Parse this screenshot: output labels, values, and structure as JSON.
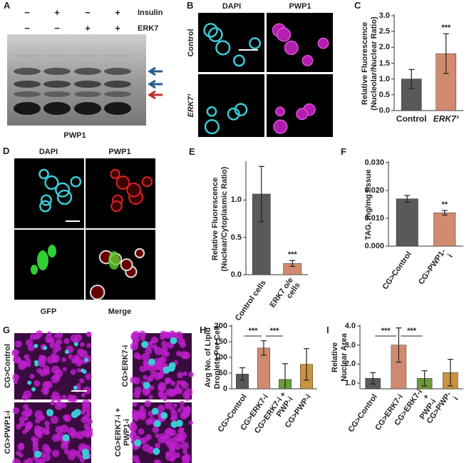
{
  "panels": {
    "a": {
      "letter": "A",
      "rows": [
        "Insulin",
        "ERK7"
      ],
      "signs": [
        [
          "−",
          "+",
          "−",
          "+"
        ],
        [
          "−",
          "−",
          "+",
          "+"
        ]
      ],
      "caption": "PWP1"
    },
    "b": {
      "letter": "B",
      "columns": [
        "DAPI",
        "PWP1"
      ],
      "rows": [
        "Control",
        "ERK7¹"
      ]
    },
    "d": {
      "letter": "D",
      "top": [
        "DAPI",
        "PWP1"
      ],
      "bottom": [
        "GFP",
        "Merge"
      ]
    },
    "g": {
      "letter": "G",
      "labels": [
        "CG>Control",
        "CG>ERK7-i",
        "CG>PWP1-i",
        "CG>ERK7-i +\nPWP1-i"
      ]
    }
  },
  "chart_data": [
    {
      "type": "bar",
      "letter": "C",
      "ylabel": [
        "Relative Fluorescence",
        "(Nucleolar/Nuclear Ratio)"
      ],
      "categories": [
        "Control",
        "ERK7¹"
      ],
      "values": [
        1.0,
        1.8
      ],
      "errors": [
        0.3,
        0.63
      ],
      "colors": [
        "#595959",
        "#d08b6f"
      ],
      "ylim": [
        0,
        3.0
      ],
      "yticks": [
        {
          "value": 0,
          "label": "0.0"
        },
        0.5,
        {
          "value": 1,
          "label": "1.0"
        },
        1.5,
        {
          "value": 2,
          "label": "2.0"
        },
        2.5,
        {
          "value": 3,
          "label": "3.0"
        }
      ],
      "annotations": [
        "***"
      ]
    },
    {
      "type": "bar",
      "letter": "E",
      "ylabel": [
        "Relative Fluorescence",
        "(Nuclear/Cytoplasmic Ratio)"
      ],
      "categories": [
        "Control cells",
        "ERK7 o/e\ncells"
      ],
      "values": [
        1.08,
        0.15
      ],
      "errors": [
        0.37,
        0.04
      ],
      "colors": [
        "#595959",
        "#d08b6f"
      ],
      "ylim": [
        0,
        1.5
      ],
      "yticks": [
        {
          "value": 0,
          "label": "0.0"
        },
        0.5,
        {
          "value": 1,
          "label": "1.0"
        }
      ],
      "annotations": [
        "***"
      ]
    },
    {
      "type": "bar",
      "letter": "F",
      "ylabel": [
        "TAG, mg/mg tissue"
      ],
      "categories": [
        "CG>Control",
        "CG>PWP1-i"
      ],
      "values": [
        0.017,
        0.012
      ],
      "errors": [
        0.0012,
        0.0008
      ],
      "colors": [
        "#595959",
        "#d08b6f"
      ],
      "ylim": [
        0,
        0.03
      ],
      "yticks": [
        {
          "value": 0,
          "label": "0.000"
        },
        {
          "value": 0.01,
          "label": "0.010"
        },
        {
          "value": 0.02,
          "label": "0.020"
        },
        {
          "value": 0.03,
          "label": "0.030"
        }
      ],
      "annotations": [
        "**"
      ]
    },
    {
      "type": "bar",
      "letter": "H",
      "ylabel": [
        "Avg No. of Lipid",
        "Droplets Per Cell"
      ],
      "categories": [
        "CG>Control",
        "CG>ERK7-i",
        "CG>ERK7-i +\nPWP-i",
        "CG>PWP-i"
      ],
      "values": [
        47,
        130,
        30,
        78
      ],
      "errors": [
        20,
        23,
        50,
        50
      ],
      "colors": [
        "#595959",
        "#d08b6f",
        "#6b9a3c",
        "#c99340"
      ],
      "ylim": [
        0,
        200
      ],
      "yticks": [
        0,
        50,
        100,
        150,
        200
      ],
      "annotations": [
        "***",
        "***"
      ]
    },
    {
      "type": "bar",
      "letter": "I",
      "ylabel": [
        "Relative",
        "Nuclear Area"
      ],
      "categories": [
        "CG>Control",
        "CG>ERK7-i",
        "CG>ERK7-i +\nPWP-i",
        "CG>PWP-i"
      ],
      "values": [
        1.25,
        3.0,
        1.25,
        1.55
      ],
      "errors": [
        0.3,
        0.9,
        0.4,
        0.7
      ],
      "colors": [
        "#595959",
        "#d08b6f",
        "#6b9a3c",
        "#c99340"
      ],
      "ylim": [
        0.7,
        4.0
      ],
      "yticks": [
        {
          "value": 1,
          "label": "1.0"
        },
        {
          "value": 2,
          "label": "2.0"
        },
        {
          "value": 3,
          "label": "3.0"
        },
        {
          "value": 4,
          "label": "4.0"
        }
      ],
      "annotations": [
        "***",
        "***"
      ]
    }
  ]
}
